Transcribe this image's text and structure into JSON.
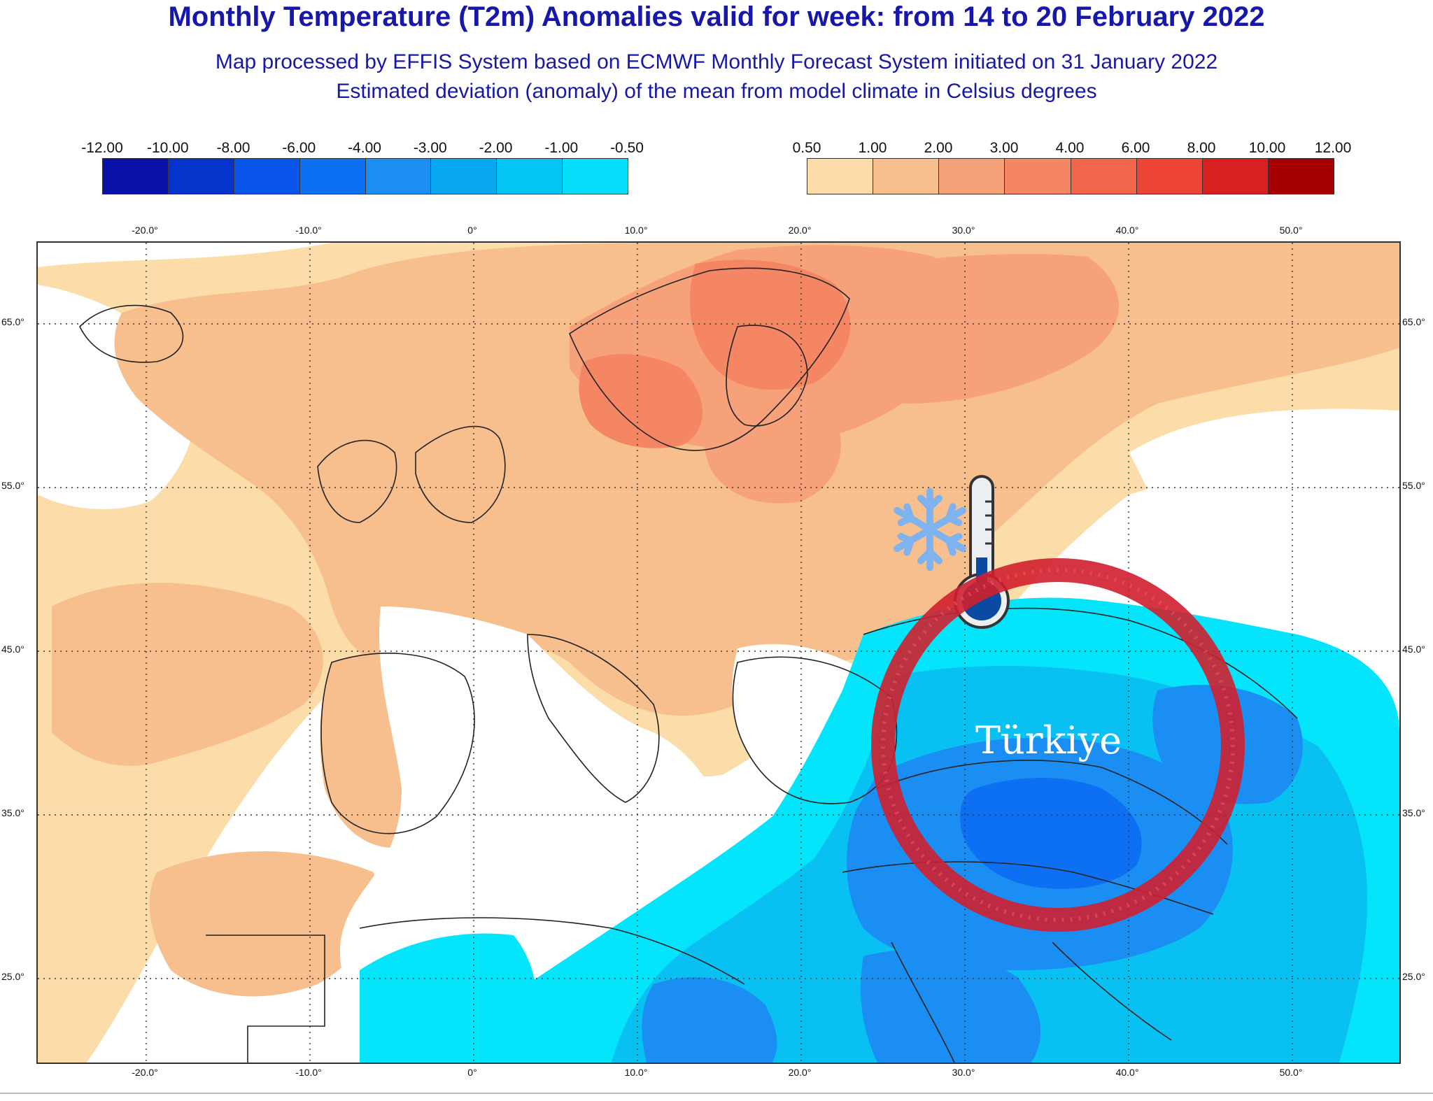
{
  "header": {
    "title": "Monthly Temperature (T2m) Anomalies valid for week: from 14 to 20 February 2022",
    "subtitle_1": "Map processed by EFFIS System based on ECMWF Monthly Forecast System initiated on 31 January 2022",
    "subtitle_2": "Estimated deviation (anomaly) of the mean from model climate in Celsius degrees"
  },
  "legend": {
    "negative": {
      "labels": [
        "-12.00",
        "-10.00",
        "-8.00",
        "-6.00",
        "-4.00",
        "-3.00",
        "-2.00",
        "-1.00",
        "-0.50"
      ],
      "colors": [
        "#0a10a8",
        "#0633cc",
        "#0a55ea",
        "#0d6ff2",
        "#1a8ef2",
        "#08a8f0",
        "#04c4f6",
        "#04dcfa"
      ]
    },
    "positive": {
      "labels": [
        "0.50",
        "1.00",
        "2.00",
        "3.00",
        "4.00",
        "6.00",
        "8.00",
        "10.00",
        "12.00"
      ],
      "colors": [
        "#fcdca8",
        "#f8bf8e",
        "#f6a17a",
        "#f48664",
        "#f2664c",
        "#ee4436",
        "#d82020",
        "#a80000"
      ]
    }
  },
  "map": {
    "x_axis": [
      "-20.0°",
      "-10.0°",
      "0°",
      "10.0°",
      "20.0°",
      "30.0°",
      "40.0°",
      "50.0°"
    ],
    "y_axis": [
      "65.0°",
      "55.0°",
      "45.0°",
      "35.0°",
      "25.0°"
    ],
    "overlay_label": "Türkiye",
    "colors": {
      "ocean_white": "#ffffff",
      "light_peach": "#fcdca8",
      "peach": "#f8bf8e",
      "salmon": "#f6a17a",
      "orange_red": "#f48664",
      "cyan": "#04e4fa",
      "sky": "#08c0f2",
      "blue": "#1a8ef2",
      "deep_blue": "#0d6ff2",
      "ring": "#d01f2e",
      "snowflake": "#7fb3ef",
      "thermo_bulb": "#0a4aa0"
    }
  }
}
